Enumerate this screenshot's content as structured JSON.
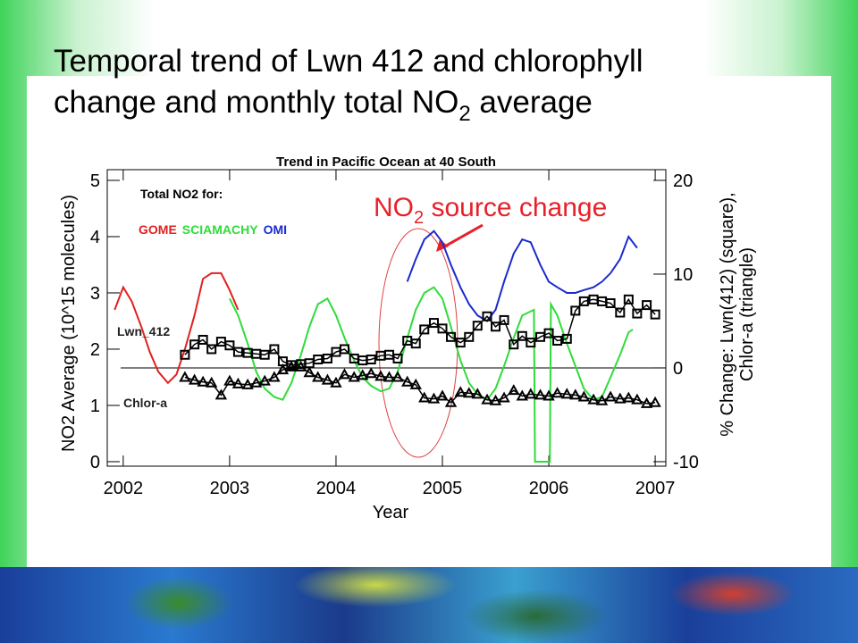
{
  "title": {
    "line1": "Temporal trend of Lwn 412 and chlorophyll",
    "line2": "change and monthly total NO",
    "line2_sub": "2",
    "line2_end": " average"
  },
  "chart_data": {
    "type": "line",
    "title": "Trend in Pacific Ocean at 40 South",
    "xlabel": "Year",
    "ylabel": "NO2 Average (10^15 molecules)",
    "y2label": [
      "% Change: Lwn(412) (square),",
      "Chlor-a (triangle)"
    ],
    "legend_title": "Total NO2 for:",
    "annotation": {
      "text": "NO",
      "sub": "2",
      "rest": " source change",
      "color": "#e8202a"
    },
    "xlim": [
      2001.85,
      2007.1
    ],
    "xticks": [
      2002,
      2003,
      2004,
      2005,
      2006,
      2007
    ],
    "ylim": [
      -0.08,
      5.19
    ],
    "yticks": [
      0,
      1,
      2,
      3,
      4,
      5
    ],
    "y2lim": [
      -10.48,
      21.14
    ],
    "y2ticks": [
      -10,
      0,
      10,
      20
    ],
    "series": [
      {
        "name": "GOME",
        "color": "#e02020",
        "axis": "y",
        "marker": "none",
        "x": [
          2001.92,
          2002.0,
          2002.08,
          2002.17,
          2002.25,
          2002.33,
          2002.42,
          2002.5,
          2002.58,
          2002.67,
          2002.75,
          2002.83,
          2002.92,
          2003.0,
          2003.08
        ],
        "values": [
          2.7,
          3.1,
          2.85,
          2.4,
          1.95,
          1.6,
          1.4,
          1.55,
          2.0,
          2.6,
          3.25,
          3.35,
          3.35,
          3.05,
          2.7
        ]
      },
      {
        "name": "SCIAMACHY",
        "color": "#2fdc3a",
        "axis": "y",
        "marker": "none",
        "x": [
          2003.0,
          2003.08,
          2003.17,
          2003.25,
          2003.33,
          2003.42,
          2003.5,
          2003.58,
          2003.67,
          2003.75,
          2003.83,
          2003.92,
          2004.0,
          2004.08,
          2004.17,
          2004.25,
          2004.33,
          2004.42,
          2004.5,
          2004.58,
          2004.67,
          2004.75,
          2004.83,
          2004.92,
          2005.0,
          2005.08,
          2005.17,
          2005.25,
          2005.33,
          2005.42,
          2005.5,
          2005.58,
          2005.67,
          2005.75,
          2005.86,
          2005.87,
          2006.01,
          2006.02,
          2006.08,
          2006.17,
          2006.25,
          2006.33,
          2006.42,
          2006.5,
          2006.58,
          2006.67,
          2006.75,
          2006.79
        ],
        "values": [
          2.9,
          2.6,
          2.1,
          1.6,
          1.3,
          1.15,
          1.1,
          1.4,
          1.9,
          2.4,
          2.8,
          2.9,
          2.6,
          2.2,
          1.8,
          1.5,
          1.35,
          1.25,
          1.3,
          1.6,
          2.2,
          2.7,
          3.0,
          3.1,
          2.9,
          2.4,
          1.8,
          1.4,
          1.2,
          1.1,
          1.3,
          1.7,
          2.2,
          2.6,
          2.7,
          0,
          0,
          2.8,
          2.6,
          2.1,
          1.7,
          1.3,
          1.1,
          1.15,
          1.5,
          1.9,
          2.3,
          2.35
        ]
      },
      {
        "name": "OMI",
        "color": "#1a2ad0",
        "axis": "y",
        "marker": "none",
        "x": [
          2004.67,
          2004.75,
          2004.83,
          2004.92,
          2005.0,
          2005.08,
          2005.17,
          2005.25,
          2005.33,
          2005.42,
          2005.5,
          2005.58,
          2005.67,
          2005.75,
          2005.83,
          2005.92,
          2006.0,
          2006.08,
          2006.17,
          2006.25,
          2006.33,
          2006.42,
          2006.5,
          2006.58,
          2006.67,
          2006.75,
          2006.83
        ],
        "values": [
          3.2,
          3.6,
          3.95,
          4.1,
          3.9,
          3.5,
          3.1,
          2.8,
          2.6,
          2.5,
          2.7,
          3.2,
          3.7,
          3.95,
          3.9,
          3.5,
          3.2,
          3.1,
          3.0,
          3.0,
          3.05,
          3.1,
          3.2,
          3.35,
          3.6,
          4.0,
          3.8
        ]
      },
      {
        "name": "Lwn_412",
        "color": "#000000",
        "axis": "y2",
        "marker": "square",
        "x": [
          2002.58,
          2002.67,
          2002.75,
          2002.83,
          2002.92,
          2003.0,
          2003.08,
          2003.17,
          2003.25,
          2003.33,
          2003.42,
          2003.5,
          2003.58,
          2003.67,
          2003.75,
          2003.83,
          2003.92,
          2004.0,
          2004.08,
          2004.17,
          2004.25,
          2004.33,
          2004.42,
          2004.5,
          2004.58,
          2004.67,
          2004.75,
          2004.83,
          2004.92,
          2005.0,
          2005.08,
          2005.17,
          2005.25,
          2005.33,
          2005.42,
          2005.5,
          2005.58,
          2005.67,
          2005.75,
          2005.83,
          2005.92,
          2006.0,
          2006.08,
          2006.17,
          2006.25,
          2006.33,
          2006.42,
          2006.5,
          2006.58,
          2006.67,
          2006.75,
          2006.83,
          2006.92,
          2007.0
        ],
        "values": [
          1.4,
          2.5,
          3.0,
          2.0,
          2.8,
          2.4,
          1.7,
          1.6,
          1.5,
          1.4,
          2.0,
          0.7,
          0.3,
          0.4,
          0.5,
          0.9,
          1.0,
          1.7,
          2.0,
          1.0,
          0.8,
          0.9,
          1.3,
          1.4,
          1.0,
          2.9,
          2.6,
          4.1,
          4.8,
          4.2,
          3.3,
          2.7,
          3.3,
          4.5,
          5.5,
          4.4,
          5.1,
          2.5,
          3.4,
          2.7,
          3.3,
          3.7,
          2.9,
          3.1,
          6.1,
          7.1,
          7.3,
          7.1,
          6.9,
          5.9,
          7.3,
          5.8,
          6.7,
          5.7
        ]
      },
      {
        "name": "Chlor-a",
        "color": "#000000",
        "axis": "y2",
        "marker": "triangle",
        "x": [
          2002.58,
          2002.67,
          2002.75,
          2002.83,
          2002.92,
          2003.0,
          2003.08,
          2003.17,
          2003.25,
          2003.33,
          2003.42,
          2003.5,
          2003.58,
          2003.67,
          2003.75,
          2003.83,
          2003.92,
          2004.0,
          2004.08,
          2004.17,
          2004.25,
          2004.33,
          2004.42,
          2004.5,
          2004.58,
          2004.67,
          2004.75,
          2004.83,
          2004.92,
          2005.0,
          2005.08,
          2005.17,
          2005.25,
          2005.33,
          2005.42,
          2005.5,
          2005.58,
          2005.67,
          2005.75,
          2005.83,
          2005.92,
          2006.0,
          2006.08,
          2006.17,
          2006.25,
          2006.33,
          2006.42,
          2006.5,
          2006.58,
          2006.67,
          2006.75,
          2006.83,
          2006.92,
          2007.0
        ],
        "values": [
          -1.0,
          -1.3,
          -1.5,
          -1.6,
          -2.9,
          -1.4,
          -1.7,
          -1.8,
          -1.6,
          -1.4,
          -1.0,
          -0.2,
          0.1,
          0.1,
          -0.5,
          -1.0,
          -1.3,
          -1.6,
          -0.7,
          -1.0,
          -0.8,
          -0.6,
          -0.9,
          -1.0,
          -1.0,
          -1.5,
          -1.8,
          -3.2,
          -3.3,
          -3.0,
          -3.7,
          -2.6,
          -2.7,
          -2.8,
          -3.4,
          -3.5,
          -3.2,
          -2.4,
          -3.0,
          -2.8,
          -2.9,
          -3.0,
          -2.7,
          -2.8,
          -2.9,
          -3.1,
          -3.4,
          -3.5,
          -3.1,
          -3.3,
          -3.2,
          -3.4,
          -3.8,
          -3.7
        ]
      }
    ]
  }
}
